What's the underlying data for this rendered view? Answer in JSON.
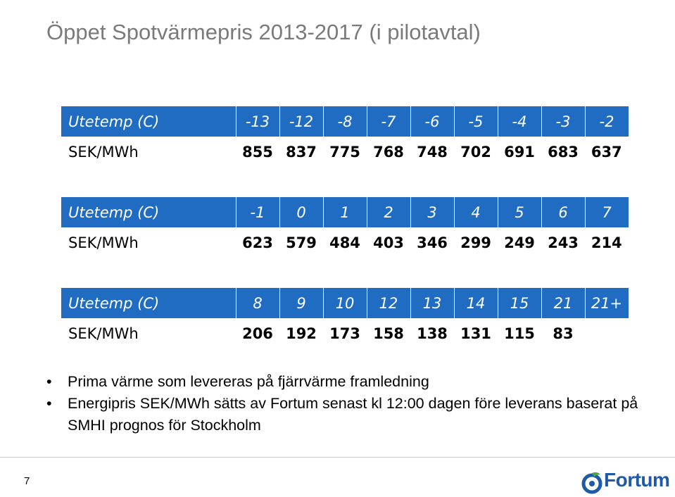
{
  "title": "Öppet Spotvärmepris 2013-2017 (i pilotavtal)",
  "tables": [
    {
      "header_label": "Utetemp (C)",
      "value_label": "SEK/MWh",
      "temps": [
        "-13",
        "-12",
        "-8",
        "-7",
        "-6",
        "-5",
        "-4",
        "-3",
        "-2"
      ],
      "prices": [
        "855",
        "837",
        "775",
        "768",
        "748",
        "702",
        "691",
        "683",
        "637"
      ]
    },
    {
      "header_label": "Utetemp (C)",
      "value_label": "SEK/MWh",
      "temps": [
        "-1",
        "0",
        "1",
        "2",
        "3",
        "4",
        "5",
        "6",
        "7"
      ],
      "prices": [
        "623",
        "579",
        "484",
        "403",
        "346",
        "299",
        "249",
        "243",
        "214"
      ]
    },
    {
      "header_label": "Utetemp (C)",
      "value_label": "SEK/MWh",
      "temps": [
        "8",
        "9",
        "10",
        "12",
        "13",
        "14",
        "15",
        "21",
        "21+"
      ],
      "prices": [
        "206",
        "192",
        "173",
        "158",
        "138",
        "131",
        "115",
        "83",
        ""
      ]
    }
  ],
  "bullets": [
    "Prima värme som levereras på fjärrvärme framledning",
    "Energipris SEK/MWh sätts av Fortum senast kl 12:00 dagen före leverans baserat på SMHI prognos för Stockholm"
  ],
  "page_number": "7",
  "logo": {
    "text": "Fortum",
    "color": "#1f5aa8",
    "icon": "fortum-logo-icon"
  },
  "colors": {
    "header_bg": "#1f6cc2",
    "title": "#7a7a7a"
  }
}
